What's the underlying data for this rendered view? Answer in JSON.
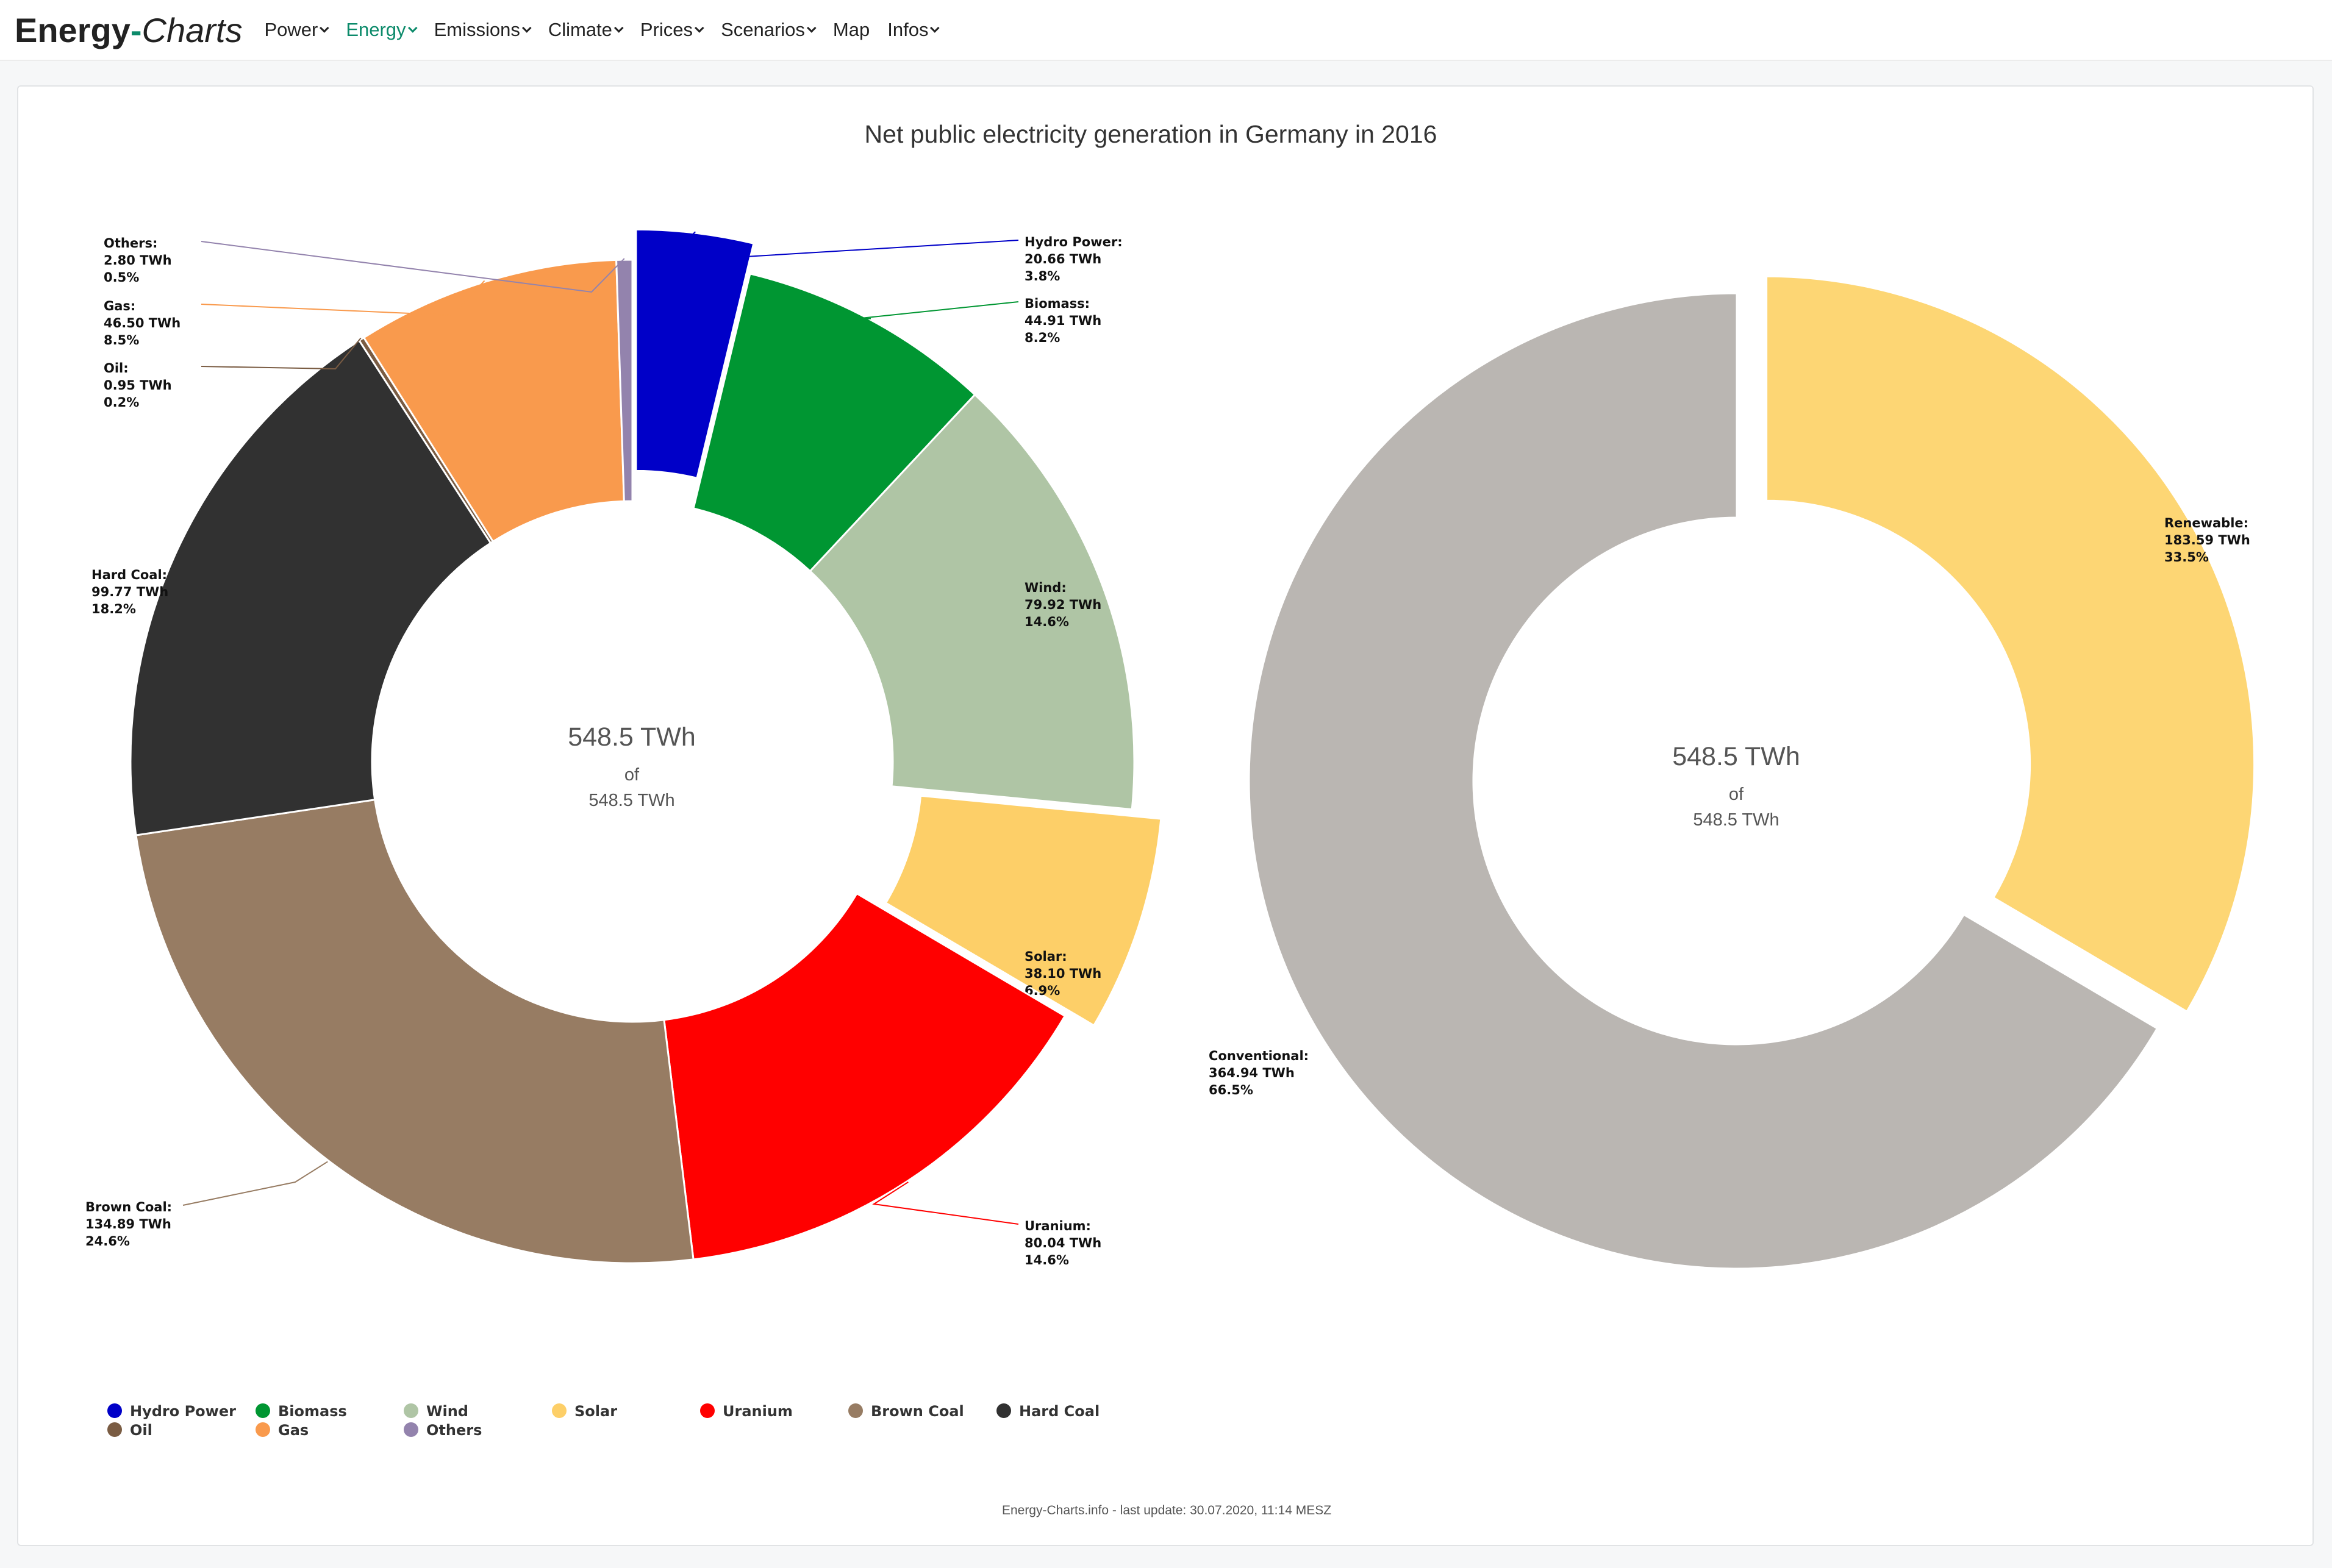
{
  "brand": {
    "part1": "Energy",
    "dash": "-",
    "part2": "Charts"
  },
  "nav": [
    {
      "label": "Power",
      "dropdown": true,
      "active": false
    },
    {
      "label": "Energy",
      "dropdown": true,
      "active": true
    },
    {
      "label": "Emissions",
      "dropdown": true,
      "active": false
    },
    {
      "label": "Climate",
      "dropdown": true,
      "active": false
    },
    {
      "label": "Prices",
      "dropdown": true,
      "active": false
    },
    {
      "label": "Scenarios",
      "dropdown": true,
      "active": false
    },
    {
      "label": "Map",
      "dropdown": false,
      "active": false
    },
    {
      "label": "Infos",
      "dropdown": true,
      "active": false
    }
  ],
  "chart_data": [
    {
      "type": "pie",
      "variant": "donut",
      "title": "Net public electricity generation in Germany in 2016",
      "unit": "TWh",
      "center": {
        "value": "548.5 TWh",
        "of": "of",
        "total": "548.5 TWh"
      },
      "slices": [
        {
          "name": "Hydro Power",
          "value_label": "20.66 TWh",
          "value": 20.66,
          "percent": "3.8%",
          "color": "#0000c8",
          "offset": true
        },
        {
          "name": "Biomass",
          "value_label": "44.91 TWh",
          "value": 44.91,
          "percent": "8.2%",
          "color": "#009632",
          "offset": false
        },
        {
          "name": "Wind",
          "value_label": "79.92 TWh",
          "value": 79.92,
          "percent": "14.6%",
          "color": "#afc5a5",
          "offset": false
        },
        {
          "name": "Solar",
          "value_label": "38.10 TWh",
          "value": 38.1,
          "percent": "6.9%",
          "color": "#fdcf68",
          "offset": true
        },
        {
          "name": "Uranium",
          "value_label": "80.04 TWh",
          "value": 80.04,
          "percent": "14.6%",
          "color": "#ff0000",
          "offset": false
        },
        {
          "name": "Brown Coal",
          "value_label": "134.89 TWh",
          "value": 134.89,
          "percent": "24.6%",
          "color": "#977c63",
          "offset": false
        },
        {
          "name": "Hard Coal",
          "value_label": "99.77 TWh",
          "value": 99.77,
          "percent": "18.2%",
          "color": "#313131",
          "offset": false
        },
        {
          "name": "Oil",
          "value_label": "0.95 TWh",
          "value": 0.95,
          "percent": "0.2%",
          "color": "#7a5c43",
          "offset": false
        },
        {
          "name": "Gas",
          "value_label": "46.50 TWh",
          "value": 46.5,
          "percent": "8.5%",
          "color": "#f99a4d",
          "offset": false
        },
        {
          "name": "Others",
          "value_label": "2.80 TWh",
          "value": 2.8,
          "percent": "0.5%",
          "color": "#9383ad",
          "offset": false
        }
      ]
    },
    {
      "type": "pie",
      "variant": "donut",
      "unit": "TWh",
      "center": {
        "value": "548.5 TWh",
        "of": "of",
        "total": "548.5 TWh"
      },
      "slices": [
        {
          "name": "Renewable",
          "value_label": "183.59 TWh",
          "value": 183.59,
          "percent": "33.5%",
          "color": "#fdd674",
          "offset": true
        },
        {
          "name": "Conventional",
          "value_label": "364.94 TWh",
          "value": 364.94,
          "percent": "66.5%",
          "color": "#bab6b2",
          "offset": false
        }
      ]
    }
  ],
  "legend": [
    {
      "name": "Hydro Power",
      "color": "#0000c8"
    },
    {
      "name": "Biomass",
      "color": "#009632"
    },
    {
      "name": "Wind",
      "color": "#afc5a5"
    },
    {
      "name": "Solar",
      "color": "#fdcf68"
    },
    {
      "name": "Uranium",
      "color": "#ff0000"
    },
    {
      "name": "Brown Coal",
      "color": "#977c63"
    },
    {
      "name": "Hard Coal",
      "color": "#313131"
    },
    {
      "name": "Oil",
      "color": "#7a5c43"
    },
    {
      "name": "Gas",
      "color": "#f99a4d"
    },
    {
      "name": "Others",
      "color": "#9383ad"
    }
  ],
  "footer": "Energy-Charts.info - last update: 30.07.2020, 11:14 MESZ"
}
